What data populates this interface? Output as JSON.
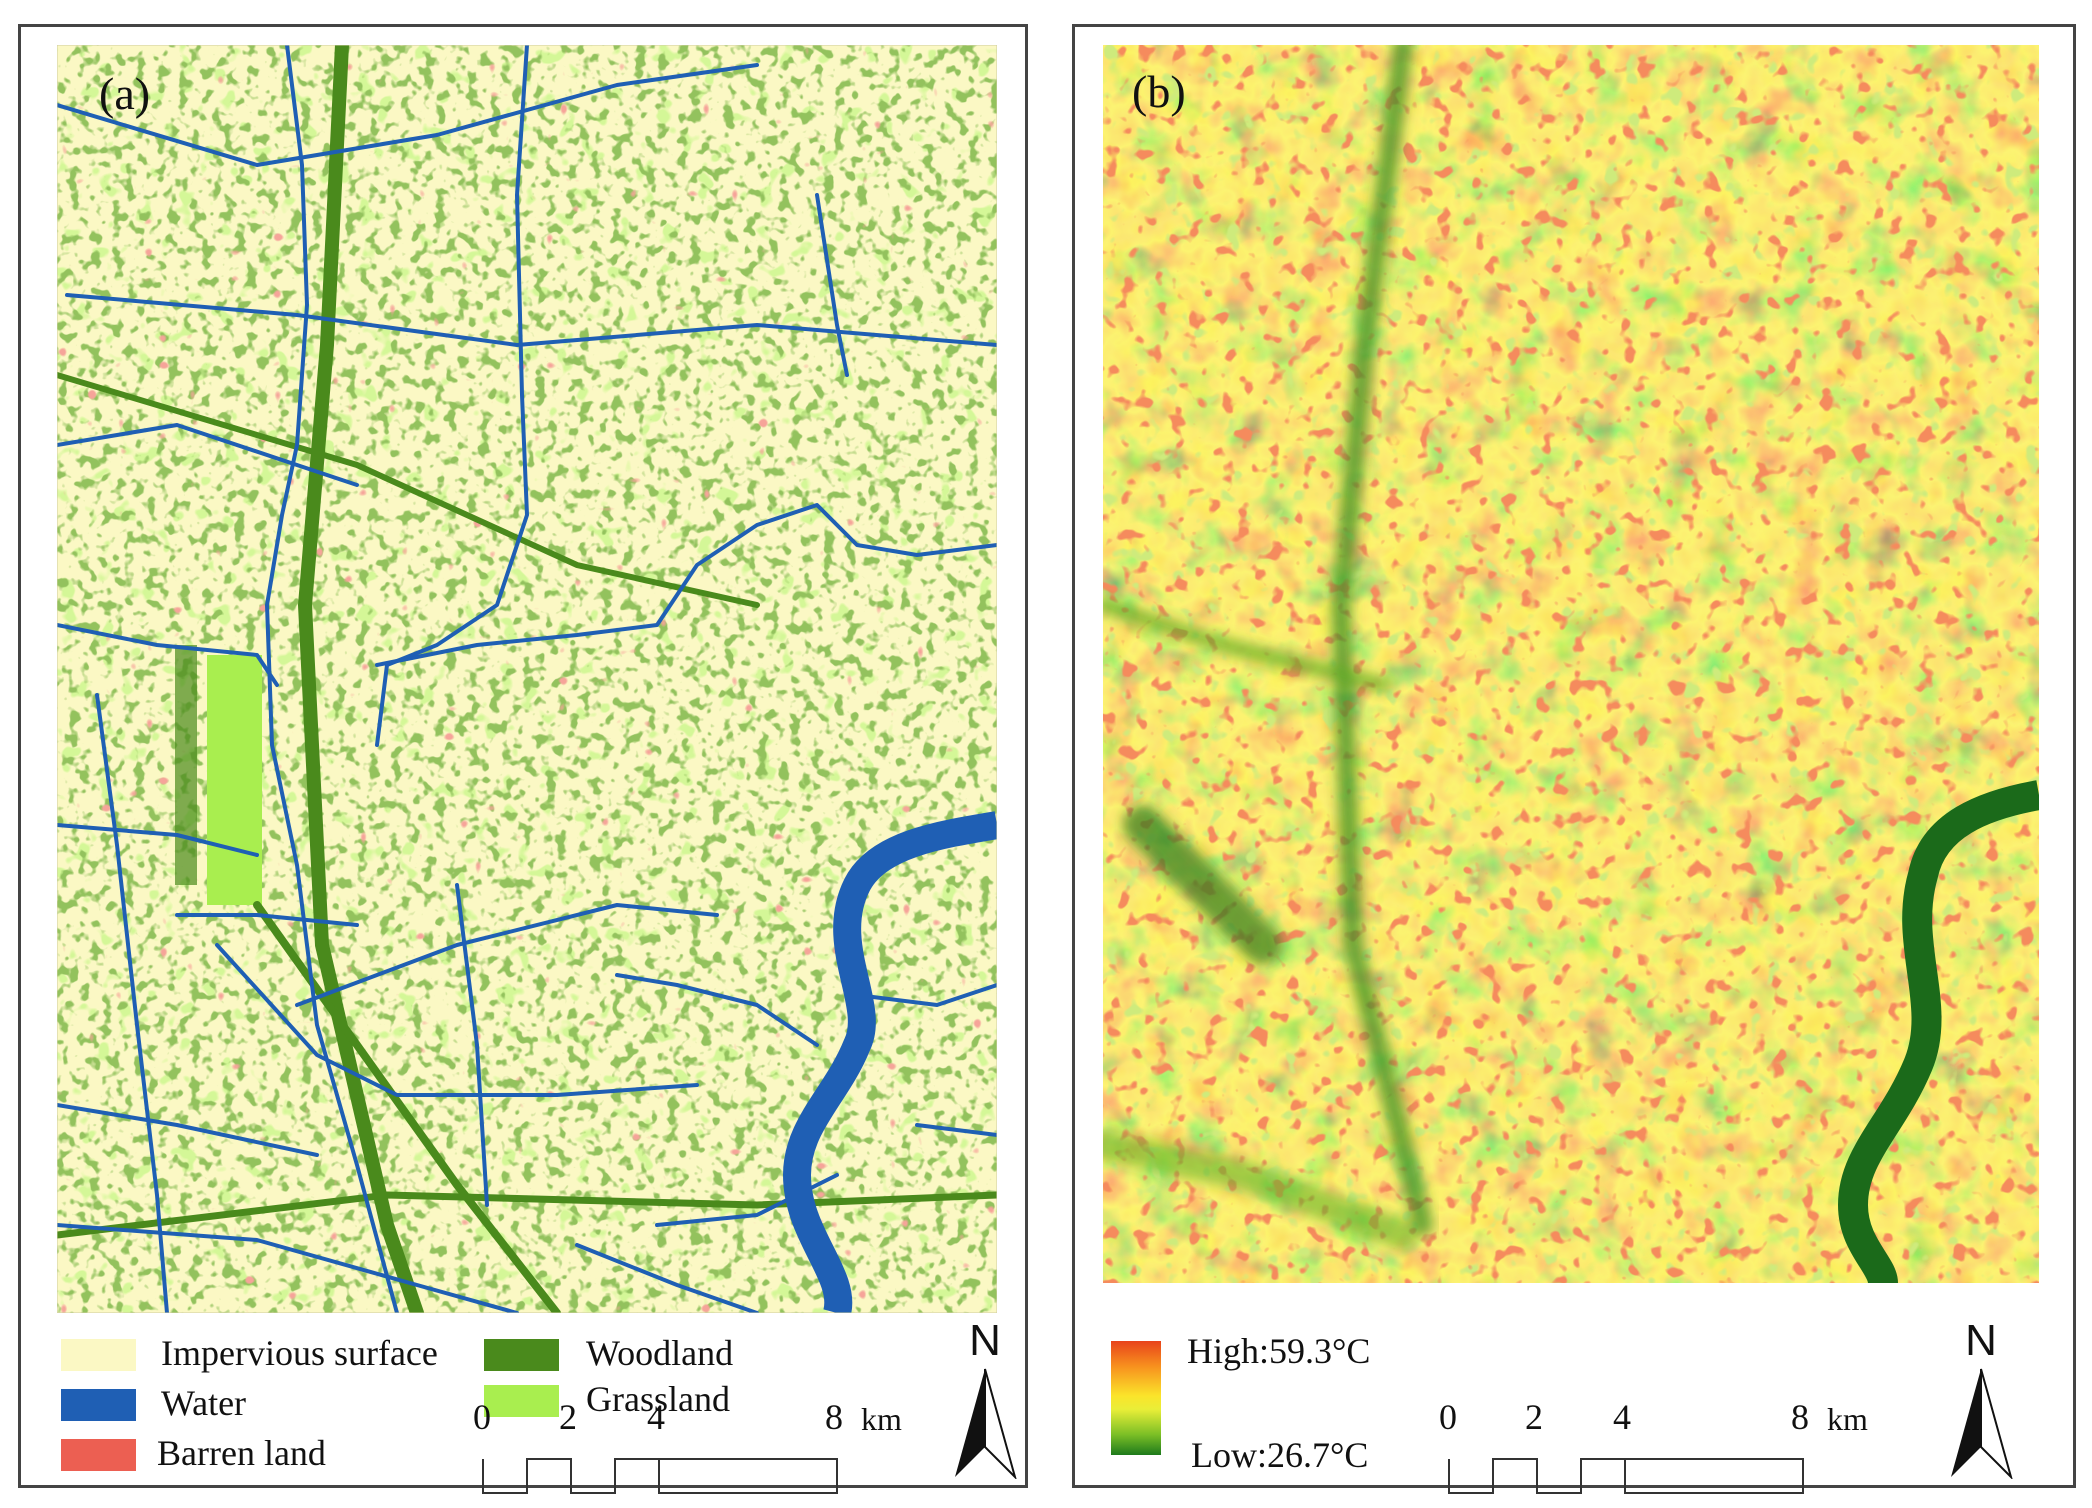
{
  "panel_a": {
    "label": "(a)",
    "legend": [
      {
        "label": "Impervious surface",
        "color": "#fbf8c4"
      },
      {
        "label": "Water",
        "color": "#1f5fb4"
      },
      {
        "label": "Barren land",
        "color": "#ec5f52"
      },
      {
        "label": "Woodland",
        "color": "#4a8a1c"
      },
      {
        "label": "Grassland",
        "color": "#a9ee4f"
      }
    ],
    "scale_bar": {
      "ticks": [
        "0",
        "2",
        "4",
        "8"
      ],
      "unit": "km"
    },
    "north": "N"
  },
  "panel_b": {
    "label": "(b)",
    "colorbar": {
      "high": "High:59.3°C",
      "low": "Low:26.7°C",
      "colors": [
        "#e8431b",
        "#f7901e",
        "#fbe42a",
        "#7cbf26",
        "#1e7a1c"
      ]
    },
    "scale_bar": {
      "ticks": [
        "0",
        "2",
        "4",
        "8"
      ],
      "unit": "km"
    },
    "north": "N"
  }
}
